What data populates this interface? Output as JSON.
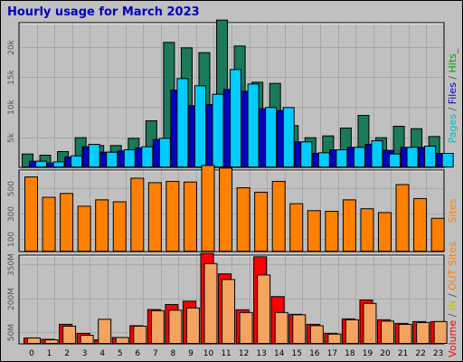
{
  "title": "Hourly usage for March 2023",
  "chart_data": [
    {
      "type": "bar",
      "categories": [
        "0",
        "1",
        "2",
        "3",
        "4",
        "5",
        "6",
        "7",
        "8",
        "9",
        "10",
        "11",
        "12",
        "13",
        "14",
        "15",
        "16",
        "17",
        "18",
        "19",
        "20",
        "21",
        "22",
        "23"
      ],
      "ylim": [
        0,
        24000
      ],
      "yticks": [
        "5k",
        "10k",
        "15k",
        "20k"
      ],
      "ytick_values": [
        5000,
        10000,
        15000,
        20000
      ],
      "side_label": [
        {
          "text": "Pages",
          "color": "#00c0c0"
        },
        {
          "text": " / ",
          "color": "#555555"
        },
        {
          "text": "Files",
          "color": "#0000c0"
        },
        {
          "text": " / ",
          "color": "#555555"
        },
        {
          "text": "Hits",
          "color": "#00a000"
        },
        {
          "text": "_",
          "color": "#555555"
        }
      ],
      "series": [
        {
          "color": "#1a7a5a",
          "values": [
            2300,
            2100,
            2700,
            5000,
            3700,
            3700,
            4900,
            7800,
            20800,
            19900,
            19100,
            24500,
            20200,
            14200,
            14000,
            7000,
            5000,
            5300,
            6600,
            8700,
            5000,
            6900,
            6500,
            5200
          ]
        },
        {
          "color": "#0000c0",
          "values": [
            1100,
            800,
            1800,
            3500,
            2600,
            2800,
            3300,
            4700,
            12900,
            10300,
            10500,
            13000,
            12700,
            9800,
            9500,
            4300,
            2400,
            3000,
            3400,
            3900,
            2900,
            3400,
            3400,
            2400
          ]
        },
        {
          "color": "#00ccff",
          "values": [
            1100,
            1000,
            2000,
            3900,
            2600,
            3000,
            3500,
            4900,
            14800,
            13600,
            12200,
            16300,
            13900,
            10000,
            10000,
            4300,
            2500,
            3000,
            3400,
            4500,
            2300,
            3400,
            3600,
            2400
          ]
        }
      ]
    },
    {
      "type": "bar",
      "categories": [
        "0",
        "1",
        "2",
        "3",
        "4",
        "5",
        "6",
        "7",
        "8",
        "9",
        "10",
        "11",
        "12",
        "13",
        "14",
        "15",
        "16",
        "17",
        "18",
        "19",
        "20",
        "21",
        "22",
        "23"
      ],
      "ylim": [
        0,
        640
      ],
      "yticks": [
        "100",
        "300",
        "500"
      ],
      "ytick_values": [
        100,
        300,
        500
      ],
      "side_label": [
        {
          "text": "Sites",
          "color": "#ff8000"
        }
      ],
      "series": [
        {
          "color": "#ff8000",
          "values": [
            590,
            430,
            460,
            360,
            410,
            395,
            580,
            545,
            555,
            550,
            680,
            660,
            505,
            470,
            555,
            380,
            325,
            320,
            410,
            340,
            310,
            530,
            420,
            265
          ]
        }
      ]
    },
    {
      "type": "bar",
      "categories": [
        "0",
        "1",
        "2",
        "3",
        "4",
        "5",
        "6",
        "7",
        "8",
        "9",
        "10",
        "11",
        "12",
        "13",
        "14",
        "15",
        "16",
        "17",
        "18",
        "19",
        "20",
        "21",
        "22",
        "23"
      ],
      "ylim": [
        0,
        390
      ],
      "yticks": [
        "50M",
        "200M",
        "350M"
      ],
      "ytick_values": [
        50,
        200,
        350
      ],
      "side_label": [
        {
          "text": "Volume",
          "color": "#ff0000"
        },
        {
          "text": " / ",
          "color": "#555555"
        },
        {
          "text": "IN",
          "color": "#c0c000"
        },
        {
          "text": " / ",
          "color": "#555555"
        },
        {
          "text": "OUT",
          "color": "#ff8000"
        },
        {
          "text": " ",
          "color": "#555555"
        },
        {
          "text": "Sites",
          "color": "#ff8000"
        }
      ],
      "series": [
        {
          "color": "#ff0000",
          "values": [
            28,
            22,
            88,
            48,
            20,
            30,
            82,
            153,
            175,
            190,
            400,
            310,
            152,
            385,
            210,
            132,
            88,
            48,
            112,
            195,
            108,
            92,
            100,
            100
          ]
        },
        {
          "color": "#f4a460",
          "values": [
            28,
            20,
            80,
            40,
            110,
            30,
            80,
            148,
            150,
            160,
            355,
            285,
            140,
            305,
            140,
            130,
            82,
            45,
            108,
            180,
            102,
            88,
            96,
            100
          ]
        }
      ]
    }
  ]
}
